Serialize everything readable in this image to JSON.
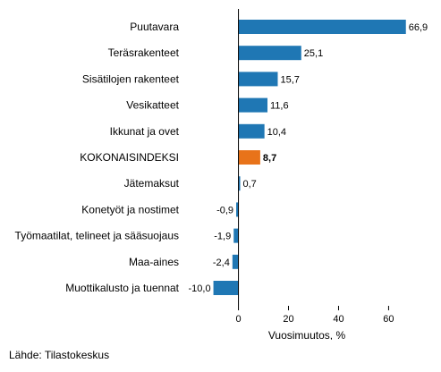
{
  "chart_data": {
    "type": "bar",
    "orientation": "horizontal",
    "categories": [
      "Puutavara",
      "Teräsrakenteet",
      "Sisätilojen rakenteet",
      "Vesikatteet",
      "Ikkunat ja ovet",
      "KOKONAISINDEKSI",
      "Jätemaksut",
      "Konetyöt ja nostimet",
      "Työmaatilat, telineet ja sääsuojaus",
      "Maa-aines",
      "Muottikalusto ja tuennat"
    ],
    "values": [
      66.9,
      25.1,
      15.7,
      11.6,
      10.4,
      8.7,
      0.7,
      -0.9,
      -1.9,
      -2.4,
      -10.0
    ],
    "value_labels": [
      "66,9",
      "25,1",
      "15,7",
      "11,6",
      "10,4",
      "8,7",
      "0,7",
      "-0,9",
      "-1,9",
      "-2,4",
      "-10,0"
    ],
    "highlight_category": "KOKONAISINDEKSI",
    "xlabel": "Vuosimuutos, %",
    "xlim": [
      -22,
      77
    ],
    "xticks": [
      0,
      20,
      40,
      60
    ],
    "grid": false,
    "colors": {
      "bar": "#1f77b4",
      "highlight": "#e8731a",
      "axis": "#000000"
    }
  },
  "source": "Lähde: Tilastokeskus"
}
